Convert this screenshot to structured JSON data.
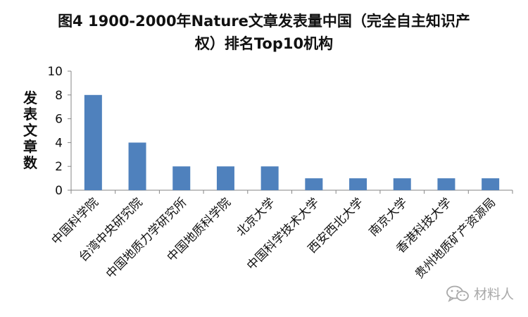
{
  "chart_data": {
    "type": "bar",
    "title_line1": "图4 1900-2000年Nature文章发表量中国（完全自主知识产",
    "title_line2": "权）排名Top10机构",
    "ylabel": "发表文章数",
    "ylim": [
      0,
      10
    ],
    "yticks": [
      "0",
      "2",
      "4",
      "6",
      "8",
      "10"
    ],
    "categories": [
      "中国科学院",
      "台湾中央研究院",
      "中国地质力学研究所",
      "中国地质科学院",
      "北京大学",
      "中国科学技术大学",
      "西安西北大学",
      "南京大学",
      "香港科技大学",
      "贵州地质矿产资源局"
    ],
    "values": [
      8,
      4,
      2,
      2,
      2,
      1,
      1,
      1,
      1,
      1
    ],
    "bar_color": "#4f81bd",
    "grid": false,
    "legend": "none"
  },
  "watermark": {
    "text": "材料人",
    "icon": "wechat-icon"
  }
}
